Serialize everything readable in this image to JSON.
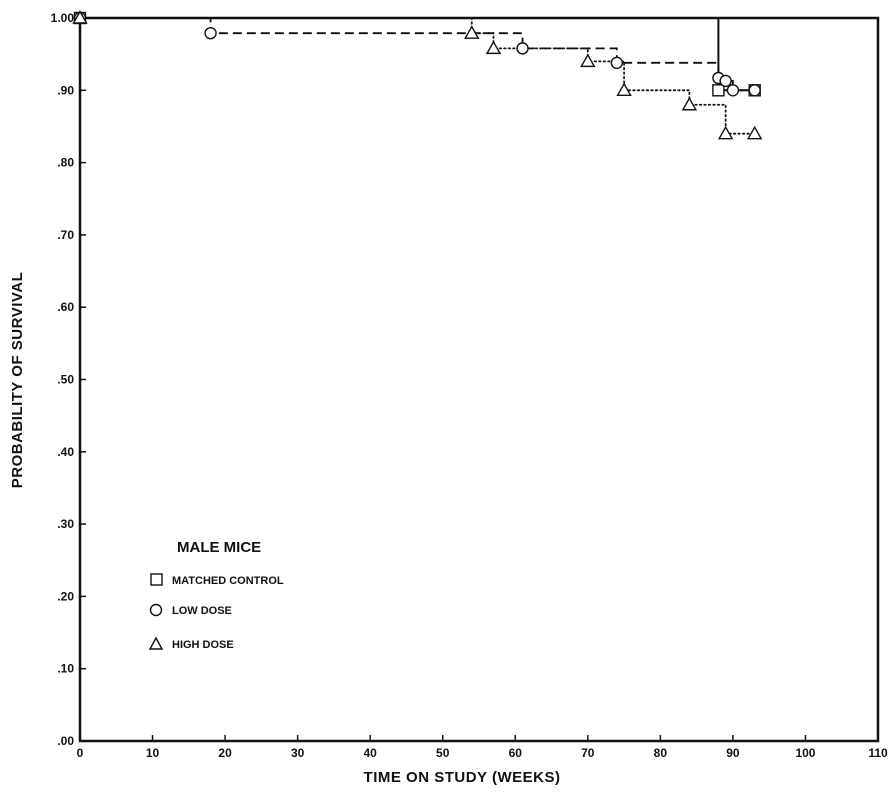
{
  "chart_data": {
    "type": "line",
    "title": "",
    "xlabel": "TIME ON STUDY (WEEKS)",
    "ylabel": "PROBABILITY OF SURVIVAL",
    "xlim": [
      0,
      110
    ],
    "ylim": [
      0,
      1.0
    ],
    "x_ticks": [
      0,
      10,
      20,
      30,
      40,
      50,
      60,
      70,
      80,
      90,
      100,
      110
    ],
    "x_tick_labels": [
      "0",
      "10",
      "20",
      "30",
      "40",
      "50",
      "60",
      "70",
      "80",
      "90",
      "100",
      "110"
    ],
    "y_ticks": [
      0,
      0.1,
      0.2,
      0.3,
      0.4,
      0.5,
      0.6,
      0.7,
      0.8,
      0.9,
      1.0
    ],
    "y_tick_labels": [
      ".00",
      ".10",
      ".20",
      ".30",
      ".40",
      ".50",
      ".60",
      ".70",
      ".80",
      ".90",
      "1.00"
    ],
    "grid": false,
    "legend": {
      "title": "MALE MICE",
      "placement": "lower-left",
      "entries": [
        {
          "label": "MATCHED CONTROL",
          "marker": "square",
          "line_style": "solid"
        },
        {
          "label": "LOW DOSE",
          "marker": "circle",
          "line_style": "dashed"
        },
        {
          "label": "HIGH DOSE",
          "marker": "triangle",
          "line_style": "dotted"
        }
      ]
    },
    "series": [
      {
        "name": "MATCHED CONTROL",
        "marker": "square",
        "line_style": "solid",
        "color": "#111111",
        "steps": [
          [
            0,
            1.0
          ],
          [
            88,
            1.0
          ],
          [
            88,
            0.9
          ],
          [
            93,
            0.9
          ]
        ],
        "markers": [
          [
            0,
            1.0
          ],
          [
            88,
            0.9
          ],
          [
            93,
            0.9
          ]
        ]
      },
      {
        "name": "LOW DOSE",
        "marker": "circle",
        "line_style": "dashed",
        "color": "#111111",
        "steps": [
          [
            0,
            1.0
          ],
          [
            18,
            1.0
          ],
          [
            18,
            0.979
          ],
          [
            61,
            0.979
          ],
          [
            61,
            0.958
          ],
          [
            74,
            0.958
          ],
          [
            74,
            0.938
          ],
          [
            88,
            0.938
          ],
          [
            88,
            0.917
          ],
          [
            89,
            0.917
          ],
          [
            89,
            0.913
          ],
          [
            90,
            0.913
          ],
          [
            90,
            0.9
          ],
          [
            93,
            0.9
          ]
        ],
        "markers": [
          [
            0,
            1.0
          ],
          [
            18,
            0.979
          ],
          [
            61,
            0.958
          ],
          [
            74,
            0.938
          ],
          [
            88,
            0.917
          ],
          [
            89,
            0.913
          ],
          [
            90,
            0.9
          ],
          [
            93,
            0.9
          ]
        ]
      },
      {
        "name": "HIGH DOSE",
        "marker": "triangle",
        "line_style": "dotted",
        "color": "#111111",
        "steps": [
          [
            0,
            1.0
          ],
          [
            54,
            1.0
          ],
          [
            54,
            0.979
          ],
          [
            57,
            0.979
          ],
          [
            57,
            0.958
          ],
          [
            70,
            0.958
          ],
          [
            70,
            0.94
          ],
          [
            75,
            0.94
          ],
          [
            75,
            0.9
          ],
          [
            84,
            0.9
          ],
          [
            84,
            0.88
          ],
          [
            89,
            0.88
          ],
          [
            89,
            0.84
          ],
          [
            93,
            0.84
          ]
        ],
        "markers": [
          [
            0,
            1.0
          ],
          [
            54,
            0.979
          ],
          [
            57,
            0.958
          ],
          [
            70,
            0.94
          ],
          [
            75,
            0.9
          ],
          [
            84,
            0.88
          ],
          [
            89,
            0.84
          ],
          [
            93,
            0.84
          ]
        ]
      }
    ]
  }
}
